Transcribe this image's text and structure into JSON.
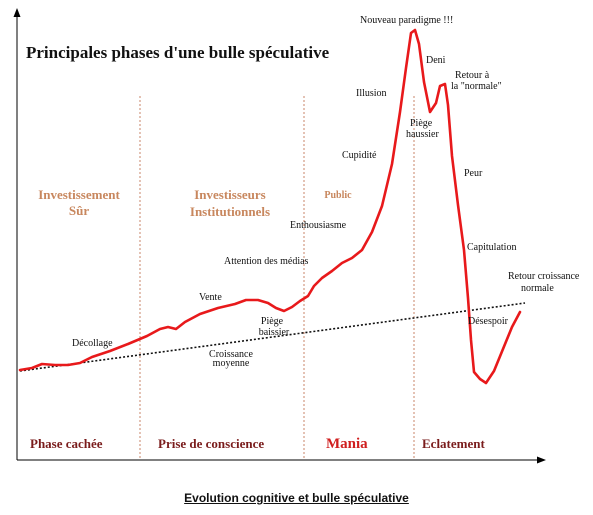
{
  "title": "Principales phases d'une bulle spéculative",
  "caption": "Evolution cognitive et bulle spéculative",
  "actors": {
    "investissement_1": "Investissement",
    "investissement_2": "Sûr",
    "institutionnels_1": "Investisseurs",
    "institutionnels_2": "Institutionnels",
    "public": "Public"
  },
  "phases": {
    "cachee": "Phase cachée",
    "conscience": "Prise de conscience",
    "mania": "Mania",
    "eclatement": "Eclatement"
  },
  "annotations": {
    "decollage": "Décollage",
    "vente": "Vente",
    "piege_baissier_1": "Piège",
    "piege_baissier_2": "baissier",
    "croissance_1": "Croissance",
    "croissance_2": "moyenne",
    "attention": "Attention des médias",
    "enthousiasme": "Enthousiasme",
    "cupidite": "Cupidité",
    "illusion": "Illusion",
    "paradigme": "Nouveau paradigme !!!",
    "deni": "Deni",
    "retour_normale_1": "Retour  à",
    "retour_normale_2": "la \"normale\"",
    "piege_haussier_1": "Piège",
    "piege_haussier_2": "haussier",
    "peur": "Peur",
    "capitulation": "Capitulation",
    "retour_croissance_1": "Retour croissance",
    "retour_croissance_2": "normale",
    "desespoir": "Désespoir"
  },
  "colors": {
    "curve": "#e8191b",
    "divider": "#c9866a",
    "actor_text": "#c8875e",
    "phase_text": "#7a1c1c",
    "mania_text": "#d01f1f"
  }
}
